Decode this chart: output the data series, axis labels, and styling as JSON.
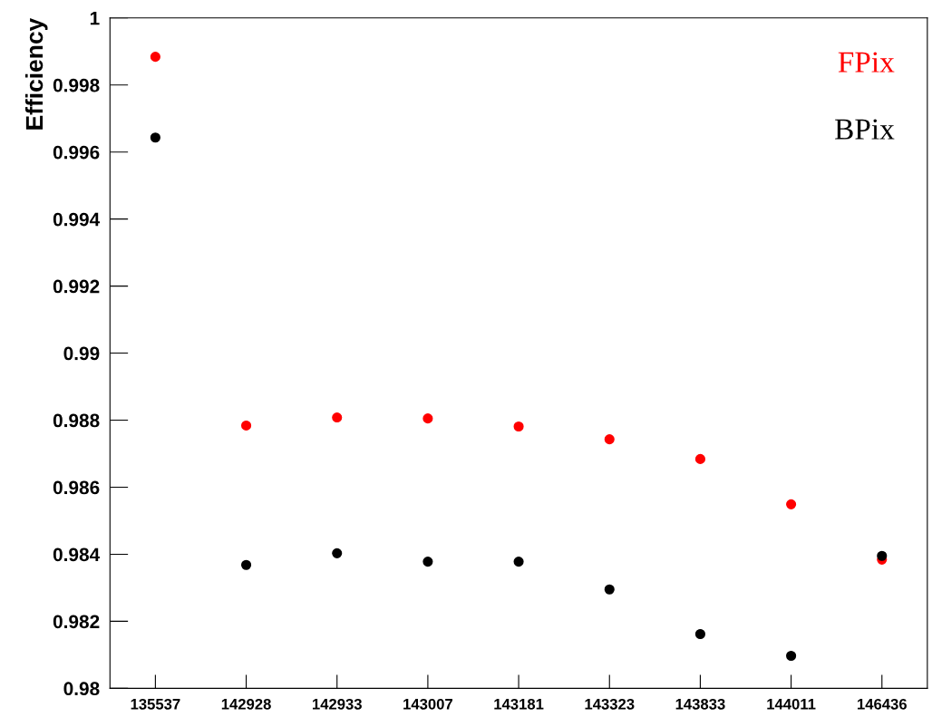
{
  "chart_data": {
    "type": "scatter",
    "ylabel": "Efficiency",
    "categories": [
      "135537",
      "142928",
      "142933",
      "143007",
      "143181",
      "143323",
      "143833",
      "144011",
      "146436"
    ],
    "ylim": [
      0.98,
      1
    ],
    "yticks": [
      0.98,
      0.982,
      0.984,
      0.986,
      0.988,
      0.99,
      0.992,
      0.994,
      0.996,
      0.998,
      1
    ],
    "marker": "circle",
    "grid": false,
    "series": [
      {
        "name": "FPix",
        "color": "#ff0000",
        "values": [
          0.99884,
          0.98784,
          0.98808,
          0.98805,
          0.98781,
          0.98743,
          0.98684,
          0.98549,
          0.98384
        ]
      },
      {
        "name": "BPix",
        "color": "#000000",
        "values": [
          0.99643,
          0.98368,
          0.98403,
          0.98378,
          0.98378,
          0.98295,
          0.98162,
          0.98097,
          0.98395
        ]
      }
    ]
  }
}
